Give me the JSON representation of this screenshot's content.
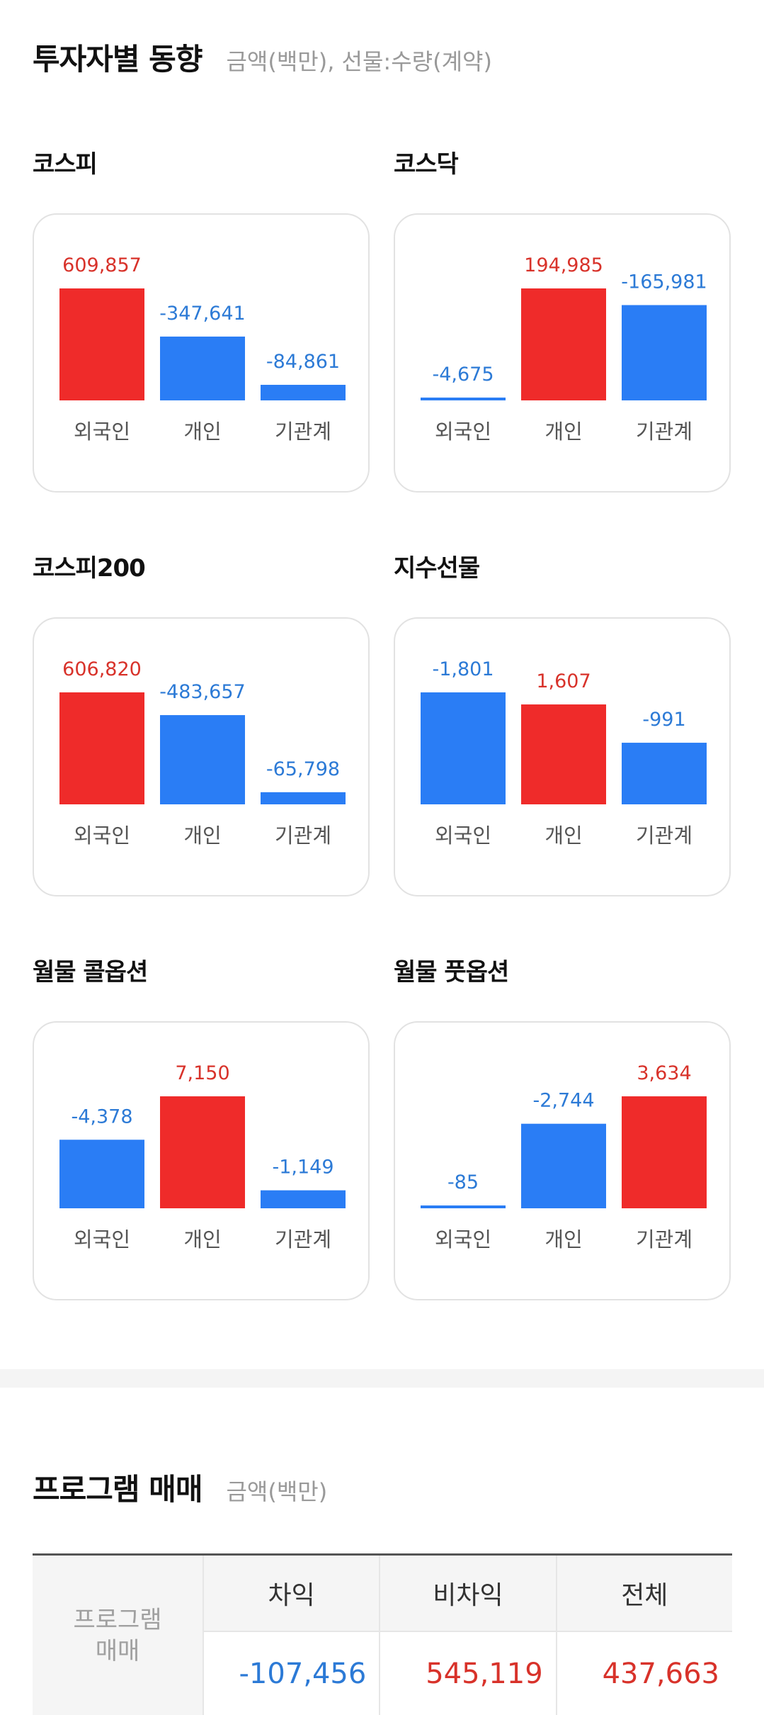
{
  "investor": {
    "title": "투자자별 동향",
    "subtitle": "금액(백만), 선물:수량(계약)",
    "colors": {
      "positive": "#ef2b2a",
      "negative": "#2a7df5",
      "positive_text": "#d8322a",
      "negative_text": "#2c7ad6"
    },
    "cards": [
      {
        "title": "코스피",
        "bars": [
          {
            "label": "외국인",
            "value": 609857,
            "text": "609,857"
          },
          {
            "label": "개인",
            "value": -347641,
            "text": "-347,641"
          },
          {
            "label": "기관계",
            "value": -84861,
            "text": "-84,861"
          }
        ]
      },
      {
        "title": "코스닥",
        "bars": [
          {
            "label": "외국인",
            "value": -4675,
            "text": "-4,675"
          },
          {
            "label": "개인",
            "value": 194985,
            "text": "194,985"
          },
          {
            "label": "기관계",
            "value": -165981,
            "text": "-165,981"
          }
        ]
      },
      {
        "title": "코스피200",
        "bars": [
          {
            "label": "외국인",
            "value": 606820,
            "text": "606,820"
          },
          {
            "label": "개인",
            "value": -483657,
            "text": "-483,657"
          },
          {
            "label": "기관계",
            "value": -65798,
            "text": "-65,798"
          }
        ]
      },
      {
        "title": "지수선물",
        "bars": [
          {
            "label": "외국인",
            "value": -1801,
            "text": "-1,801"
          },
          {
            "label": "개인",
            "value": 1607,
            "text": "1,607"
          },
          {
            "label": "기관계",
            "value": -991,
            "text": "-991"
          }
        ]
      },
      {
        "title": "월물 콜옵션",
        "bars": [
          {
            "label": "외국인",
            "value": -4378,
            "text": "-4,378"
          },
          {
            "label": "개인",
            "value": 7150,
            "text": "7,150"
          },
          {
            "label": "기관계",
            "value": -1149,
            "text": "-1,149"
          }
        ]
      },
      {
        "title": "월물 풋옵션",
        "bars": [
          {
            "label": "외국인",
            "value": -85,
            "text": "-85"
          },
          {
            "label": "개인",
            "value": -2744,
            "text": "-2,744"
          },
          {
            "label": "기관계",
            "value": 3634,
            "text": "3,634"
          }
        ]
      }
    ]
  },
  "program": {
    "title": "프로그램 매매",
    "subtitle": "금액(백만)",
    "row_label": "프로그램 매매",
    "headers": [
      "차익",
      "비차익",
      "전체"
    ],
    "values": [
      {
        "text": "-107,456",
        "value": -107456
      },
      {
        "text": "545,119",
        "value": 545119
      },
      {
        "text": "437,663",
        "value": 437663
      }
    ]
  }
}
